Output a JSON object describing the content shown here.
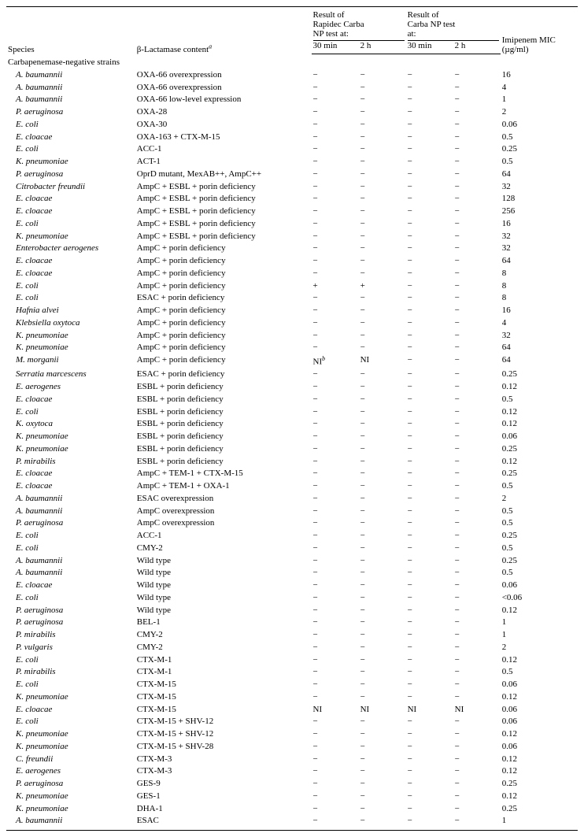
{
  "header": {
    "col_species": "Species",
    "col_content_html": "β-Lactamase content<span class=\"sup\">a</span>",
    "group_rapidec": "Result of\nRapidec Carba\nNP test at:",
    "group_carbanp": "Result of\nCarba NP test\nat:",
    "col_30min": "30 min",
    "col_2h": "2 h",
    "col_mic": "Imipenem MIC\n(µg/ml)"
  },
  "section_label": "Carbapenemase-negative strains",
  "NI_note_html": "NI<span class=\"sup\">b</span>",
  "rows": [
    {
      "sp": "A. baumannii",
      "it": 1,
      "c": "OXA-66 overexpression",
      "r": [
        "−",
        "−",
        "−",
        "−"
      ],
      "m": "16"
    },
    {
      "sp": "A. baumannii",
      "it": 1,
      "c": "OXA-66 overexpression",
      "r": [
        "−",
        "−",
        "−",
        "−"
      ],
      "m": "4"
    },
    {
      "sp": "A. baumannii",
      "it": 1,
      "c": "OXA-66 low-level expression",
      "r": [
        "−",
        "−",
        "−",
        "−"
      ],
      "m": "1"
    },
    {
      "sp": "P. aeruginosa",
      "it": 1,
      "c": "OXA-28",
      "r": [
        "−",
        "−",
        "−",
        "−"
      ],
      "m": "2"
    },
    {
      "sp": "E. coli",
      "it": 1,
      "c": "OXA-30",
      "r": [
        "−",
        "−",
        "−",
        "−"
      ],
      "m": "0.06"
    },
    {
      "sp": "E. cloacae",
      "it": 1,
      "c": "OXA-163 + CTX-M-15",
      "r": [
        "−",
        "−",
        "−",
        "−"
      ],
      "m": "0.5"
    },
    {
      "sp": "E. coli",
      "it": 1,
      "c": "ACC-1",
      "r": [
        "−",
        "−",
        "−",
        "−"
      ],
      "m": "0.25"
    },
    {
      "sp": "K. pneumoniae",
      "it": 1,
      "c": "ACT-1",
      "r": [
        "−",
        "−",
        "−",
        "−"
      ],
      "m": "0.5"
    },
    {
      "sp": "P. aeruginosa",
      "it": 1,
      "c": "OprD mutant, MexAB++, AmpC++",
      "r": [
        "−",
        "−",
        "−",
        "−"
      ],
      "m": "64"
    },
    {
      "sp": "Citrobacter freundii",
      "it": 1,
      "c": "AmpC + ESBL + porin deficiency",
      "r": [
        "−",
        "−",
        "−",
        "−"
      ],
      "m": "32"
    },
    {
      "sp": "E. cloacae",
      "it": 1,
      "c": "AmpC + ESBL + porin deficiency",
      "r": [
        "−",
        "−",
        "−",
        "−"
      ],
      "m": "128"
    },
    {
      "sp": "E. cloacae",
      "it": 1,
      "c": "AmpC + ESBL + porin deficiency",
      "r": [
        "−",
        "−",
        "−",
        "−"
      ],
      "m": "256"
    },
    {
      "sp": "E. coli",
      "it": 1,
      "c": "AmpC + ESBL + porin deficiency",
      "r": [
        "−",
        "−",
        "−",
        "−"
      ],
      "m": "16"
    },
    {
      "sp": "K. pneumoniae",
      "it": 1,
      "c": "AmpC + ESBL + porin deficiency",
      "r": [
        "−",
        "−",
        "−",
        "−"
      ],
      "m": "32"
    },
    {
      "sp": "Enterobacter aerogenes",
      "it": 1,
      "c": "AmpC + porin deficiency",
      "r": [
        "−",
        "−",
        "−",
        "−"
      ],
      "m": "32"
    },
    {
      "sp": "E. cloacae",
      "it": 1,
      "c": "AmpC + porin deficiency",
      "r": [
        "−",
        "−",
        "−",
        "−"
      ],
      "m": "64"
    },
    {
      "sp": "E. cloacae",
      "it": 1,
      "c": "AmpC + porin deficiency",
      "r": [
        "−",
        "−",
        "−",
        "−"
      ],
      "m": "8"
    },
    {
      "sp": "E. coli",
      "it": 1,
      "c": "AmpC + porin deficiency",
      "r": [
        "+",
        "+",
        "−",
        "−"
      ],
      "m": "8"
    },
    {
      "sp": "E. coli",
      "it": 1,
      "c": "ESAC + porin deficiency",
      "r": [
        "−",
        "−",
        "−",
        "−"
      ],
      "m": "8"
    },
    {
      "sp": "Hafnia alvei",
      "it": 1,
      "c": "AmpC + porin deficiency",
      "r": [
        "−",
        "−",
        "−",
        "−"
      ],
      "m": "16"
    },
    {
      "sp": "Klebsiella oxytoca",
      "it": 1,
      "c": "AmpC + porin deficiency",
      "r": [
        "−",
        "−",
        "−",
        "−"
      ],
      "m": "4"
    },
    {
      "sp": "K. pneumoniae",
      "it": 1,
      "c": "AmpC + porin deficiency",
      "r": [
        "−",
        "−",
        "−",
        "−"
      ],
      "m": "32"
    },
    {
      "sp": "K. pneumoniae",
      "it": 1,
      "c": "AmpC + porin deficiency",
      "r": [
        "−",
        "−",
        "−",
        "−"
      ],
      "m": "64"
    },
    {
      "sp": "M. morganii",
      "it": 1,
      "c": "AmpC + porin deficiency",
      "r": [
        "NI_b",
        "NI",
        "−",
        "−"
      ],
      "m": "64"
    },
    {
      "sp": "Serratia marcescens",
      "it": 1,
      "c": "ESAC + porin deficiency",
      "r": [
        "−",
        "−",
        "−",
        "−"
      ],
      "m": "0.25"
    },
    {
      "sp": "E. aerogenes",
      "it": 1,
      "c": "ESBL + porin deficiency",
      "r": [
        "−",
        "−",
        "−",
        "−"
      ],
      "m": "0.12"
    },
    {
      "sp": "E. cloacae",
      "it": 1,
      "c": "ESBL + porin deficiency",
      "r": [
        "−",
        "−",
        "−",
        "−"
      ],
      "m": "0.5"
    },
    {
      "sp": "E. coli",
      "it": 1,
      "c": "ESBL + porin deficiency",
      "r": [
        "−",
        "−",
        "−",
        "−"
      ],
      "m": "0.12"
    },
    {
      "sp": "K. oxytoca",
      "it": 1,
      "c": "ESBL + porin deficiency",
      "r": [
        "−",
        "−",
        "−",
        "−"
      ],
      "m": "0.12"
    },
    {
      "sp": "K. pneumoniae",
      "it": 1,
      "c": "ESBL + porin deficiency",
      "r": [
        "−",
        "−",
        "−",
        "−"
      ],
      "m": "0.06"
    },
    {
      "sp": "K. pneumoniae",
      "it": 1,
      "c": "ESBL + porin deficiency",
      "r": [
        "−",
        "−",
        "−",
        "−"
      ],
      "m": "0.25"
    },
    {
      "sp": "P. mirabilis",
      "it": 1,
      "c": "ESBL + porin deficiency",
      "r": [
        "−",
        "−",
        "−",
        "−"
      ],
      "m": "0.12"
    },
    {
      "sp": "E. cloacae",
      "it": 1,
      "c": "AmpC + TEM-1 + CTX-M-15",
      "r": [
        "−",
        "−",
        "−",
        "−"
      ],
      "m": "0.25"
    },
    {
      "sp": "E. cloacae",
      "it": 1,
      "c": "AmpC + TEM-1 + OXA-1",
      "r": [
        "−",
        "−",
        "−",
        "−"
      ],
      "m": "0.5"
    },
    {
      "sp": "A. baumannii",
      "it": 1,
      "c": "ESAC overexpression",
      "r": [
        "−",
        "−",
        "−",
        "−"
      ],
      "m": "2"
    },
    {
      "sp": "A. baumannii",
      "it": 1,
      "c": "AmpC overexpression",
      "r": [
        "−",
        "−",
        "−",
        "−"
      ],
      "m": "0.5"
    },
    {
      "sp": "P. aeruginosa",
      "it": 1,
      "c": "AmpC overexpression",
      "r": [
        "−",
        "−",
        "−",
        "−"
      ],
      "m": "0.5"
    },
    {
      "sp": "E. coli",
      "it": 1,
      "c": "ACC-1",
      "r": [
        "−",
        "−",
        "−",
        "−"
      ],
      "m": "0.25"
    },
    {
      "sp": "E. coli",
      "it": 1,
      "c": "CMY-2",
      "r": [
        "−",
        "−",
        "−",
        "−"
      ],
      "m": "0.5"
    },
    {
      "sp": "A. baumannii",
      "it": 1,
      "c": "Wild type",
      "r": [
        "−",
        "−",
        "−",
        "−"
      ],
      "m": "0.25"
    },
    {
      "sp": "A. baumannii",
      "it": 1,
      "c": "Wild type",
      "r": [
        "−",
        "−",
        "−",
        "−"
      ],
      "m": "0.5"
    },
    {
      "sp": "E. cloacae",
      "it": 1,
      "c": "Wild type",
      "r": [
        "−",
        "−",
        "−",
        "−"
      ],
      "m": "0.06"
    },
    {
      "sp": "E. coli",
      "it": 1,
      "c": "Wild type",
      "r": [
        "−",
        "−",
        "−",
        "−"
      ],
      "m": "<0.06"
    },
    {
      "sp": "P. aeruginosa",
      "it": 1,
      "c": "Wild type",
      "r": [
        "−",
        "−",
        "−",
        "−"
      ],
      "m": "0.12"
    },
    {
      "sp": "P. aeruginosa",
      "it": 1,
      "c": "BEL-1",
      "r": [
        "−",
        "−",
        "−",
        "−"
      ],
      "m": "1"
    },
    {
      "sp": "P. mirabilis",
      "it": 1,
      "c": "CMY-2",
      "r": [
        "−",
        "−",
        "−",
        "−"
      ],
      "m": "1"
    },
    {
      "sp": "P. vulgaris",
      "it": 1,
      "c": "CMY-2",
      "r": [
        "−",
        "−",
        "−",
        "−"
      ],
      "m": "2"
    },
    {
      "sp": "E. coli",
      "it": 1,
      "c": "CTX-M-1",
      "r": [
        "−",
        "−",
        "−",
        "−"
      ],
      "m": "0.12"
    },
    {
      "sp": "P. mirabilis",
      "it": 1,
      "c": "CTX-M-1",
      "r": [
        "−",
        "−",
        "−",
        "−"
      ],
      "m": "0.5"
    },
    {
      "sp": "E. coli",
      "it": 1,
      "c": "CTX-M-15",
      "r": [
        "−",
        "−",
        "−",
        "−"
      ],
      "m": "0.06"
    },
    {
      "sp": "K. pneumoniae",
      "it": 1,
      "c": "CTX-M-15",
      "r": [
        "−",
        "−",
        "−",
        "−"
      ],
      "m": "0.12"
    },
    {
      "sp": "E. cloacae",
      "it": 1,
      "c": "CTX-M-15",
      "r": [
        "NI",
        "NI",
        "NI",
        "NI"
      ],
      "m": "0.06"
    },
    {
      "sp": "E. coli",
      "it": 1,
      "c": "CTX-M-15 + SHV-12",
      "r": [
        "−",
        "−",
        "−",
        "−"
      ],
      "m": "0.06"
    },
    {
      "sp": "K. pneumoniae",
      "it": 1,
      "c": "CTX-M-15 + SHV-12",
      "r": [
        "−",
        "−",
        "−",
        "−"
      ],
      "m": "0.12"
    },
    {
      "sp": "K. pneumoniae",
      "it": 1,
      "c": "CTX-M-15 + SHV-28",
      "r": [
        "−",
        "−",
        "−",
        "−"
      ],
      "m": "0.06"
    },
    {
      "sp": "C. freundii",
      "it": 1,
      "c": "CTX-M-3",
      "r": [
        "−",
        "−",
        "−",
        "−"
      ],
      "m": "0.12"
    },
    {
      "sp": "E. aerogenes",
      "it": 1,
      "c": "CTX-M-3",
      "r": [
        "−",
        "−",
        "−",
        "−"
      ],
      "m": "0.12"
    },
    {
      "sp": "P. aeruginosa",
      "it": 1,
      "c": "GES-9",
      "r": [
        "−",
        "−",
        "−",
        "−"
      ],
      "m": "0.25"
    },
    {
      "sp": "K. pneumoniae",
      "it": 1,
      "c": "GES-1",
      "r": [
        "−",
        "−",
        "−",
        "−"
      ],
      "m": "0.12"
    },
    {
      "sp": "K. pneumoniae",
      "it": 1,
      "c": "DHA-1",
      "r": [
        "−",
        "−",
        "−",
        "−"
      ],
      "m": "0.25"
    },
    {
      "sp": "A. baumannii",
      "it": 1,
      "c": "ESAC",
      "r": [
        "−",
        "−",
        "−",
        "−"
      ],
      "m": "1"
    }
  ]
}
